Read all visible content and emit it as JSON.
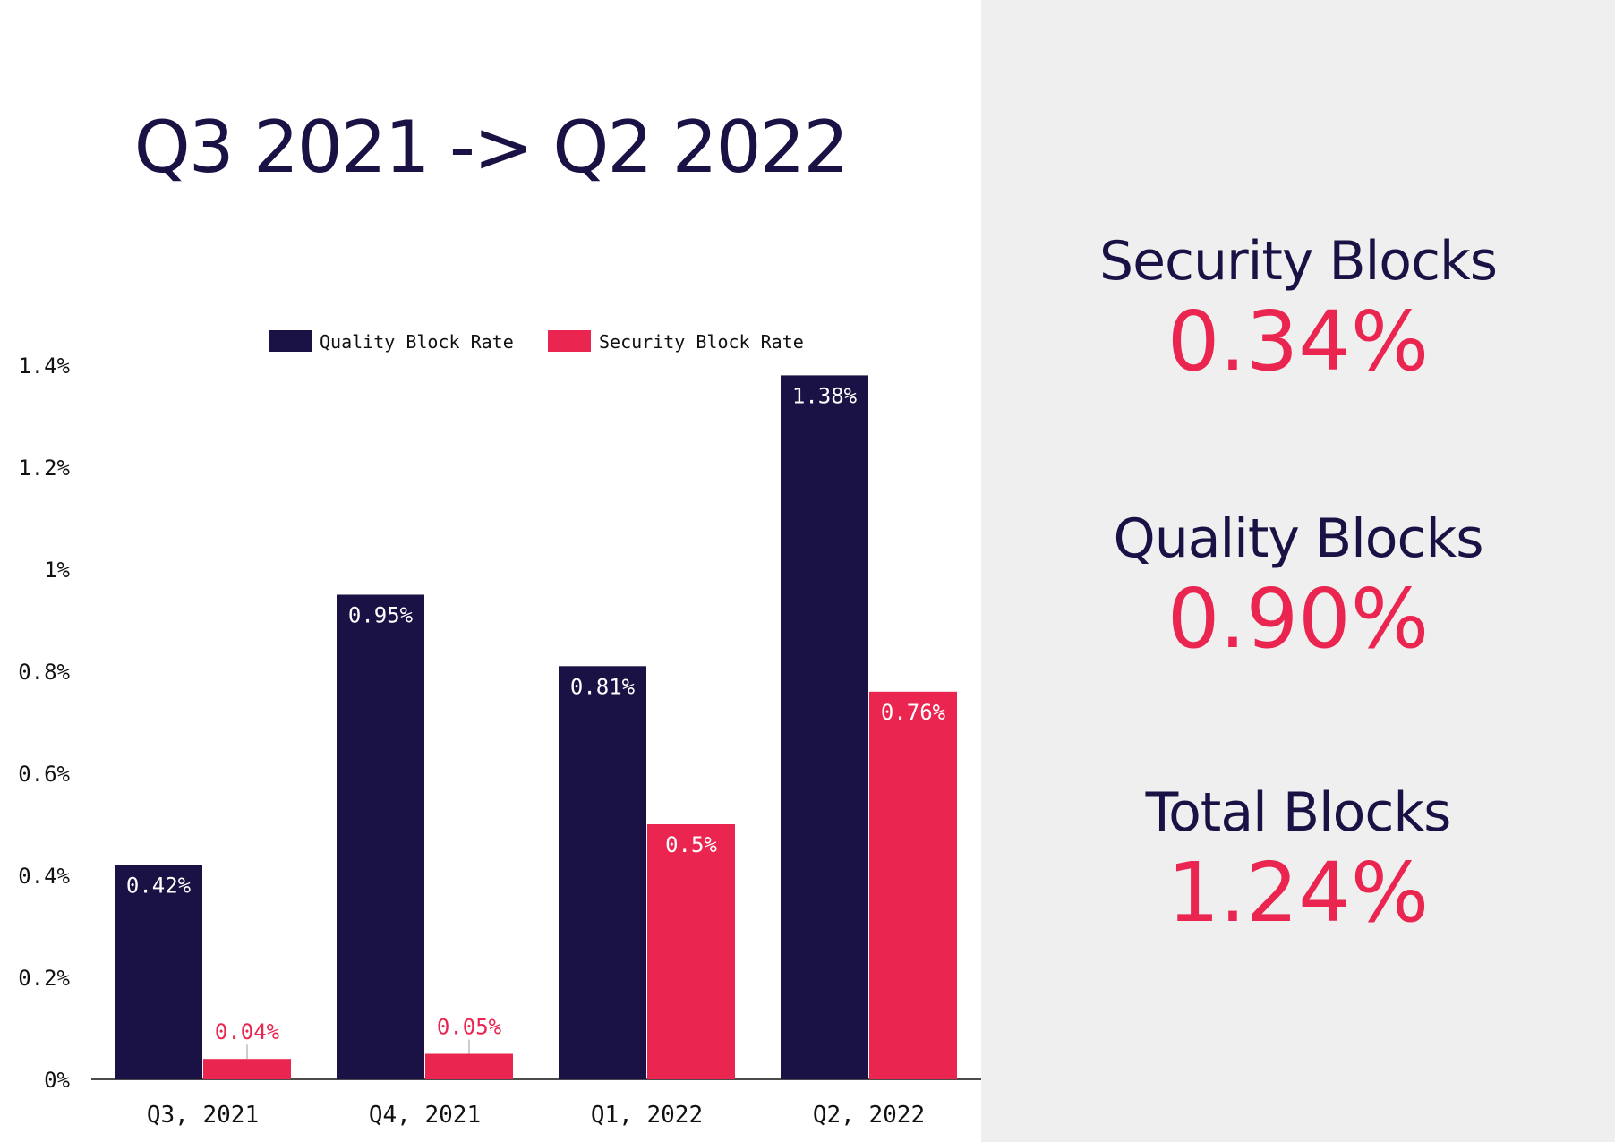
{
  "title": "Q3 2021 -> Q2 2022",
  "colors": {
    "quality": "#1a1244",
    "security": "#ea2550",
    "panel": "#efefef"
  },
  "chart_data": {
    "type": "bar",
    "categories": [
      "Q3, 2021",
      "Q4, 2021",
      "Q1, 2022",
      "Q2, 2022"
    ],
    "series": [
      {
        "name": "Quality Block Rate",
        "values": [
          0.42,
          0.95,
          0.81,
          1.38
        ],
        "labels": [
          "0.42%",
          "0.95%",
          "0.81%",
          "1.38%"
        ]
      },
      {
        "name": "Security Block Rate",
        "values": [
          0.04,
          0.05,
          0.5,
          0.76
        ],
        "labels": [
          "0.04%",
          "0.05%",
          "0.5%",
          "0.76%"
        ]
      }
    ],
    "ylim": [
      0,
      1.4
    ],
    "yticks": [
      0,
      0.2,
      0.4,
      0.6,
      0.8,
      1,
      1.2,
      1.4
    ],
    "ytick_labels": [
      "0%",
      "0.2%",
      "0.4%",
      "0.6%",
      "0.8%",
      "1%",
      "1.2%",
      "1.4%"
    ],
    "legend_position": "top-center",
    "grid": false
  },
  "stats": [
    {
      "label": "Security Blocks",
      "value": "0.34%"
    },
    {
      "label": "Quality Blocks",
      "value": "0.90%"
    },
    {
      "label": "Total Blocks",
      "value": "1.24%"
    }
  ]
}
